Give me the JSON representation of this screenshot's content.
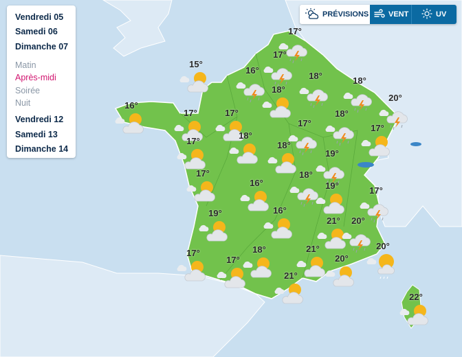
{
  "days_panel": {
    "days_before": [
      "Vendredi 05",
      "Samedi 06",
      "Dimanche 07"
    ],
    "periods": [
      {
        "label": "Matin",
        "active": false
      },
      {
        "label": "Après-midi",
        "active": true
      },
      {
        "label": "Soirée",
        "active": false
      },
      {
        "label": "Nuit",
        "active": false
      }
    ],
    "days_after": [
      "Vendredi 12",
      "Samedi 13",
      "Dimanche 14"
    ]
  },
  "tabs": [
    {
      "label": "PRÉVISIONS",
      "icon": "sun-cloud-icon",
      "active": false
    },
    {
      "label": "VENT",
      "icon": "wind-icon",
      "active": true
    },
    {
      "label": "UV",
      "icon": "uv-sun-icon",
      "active": false
    }
  ],
  "colors": {
    "land": "#72c24c",
    "sea": "#c9dff0",
    "neighbor_land": "#ddeaf5",
    "active_period": "#d1146f",
    "tab_active": "#0b6aa2"
  },
  "stations": [
    {
      "temp": "17°",
      "icon": "storm-cloud-icon"
    },
    {
      "temp": "17°",
      "icon": "storm-cloud-icon"
    },
    {
      "temp": "15°",
      "icon": "cloud-sun-icon"
    },
    {
      "temp": "16°",
      "icon": "storm-cloud-icon"
    },
    {
      "temp": "18°",
      "icon": "storm-cloud-icon"
    },
    {
      "temp": "18°",
      "icon": "storm-cloud-icon"
    },
    {
      "temp": "18°",
      "icon": "cloud-sun-icon"
    },
    {
      "temp": "20°",
      "icon": "storm-cloud-icon"
    },
    {
      "temp": "16°",
      "icon": "cloud-sun-icon"
    },
    {
      "temp": "17°",
      "icon": "cloud-sun-icon"
    },
    {
      "temp": "17°",
      "icon": "cloud-sun-icon"
    },
    {
      "temp": "18°",
      "icon": "storm-cloud-icon"
    },
    {
      "temp": "17°",
      "icon": "storm-cloud-icon"
    },
    {
      "temp": "17°",
      "icon": "cloud-sun-icon"
    },
    {
      "temp": "17°",
      "icon": "cloud-sun-icon"
    },
    {
      "temp": "18°",
      "icon": "cloud-sun-icon"
    },
    {
      "temp": "18°",
      "icon": "cloud-sun-icon"
    },
    {
      "temp": "19°",
      "icon": "storm-cloud-icon"
    },
    {
      "temp": "17°",
      "icon": "cloud-sun-icon"
    },
    {
      "temp": "16°",
      "icon": "cloud-sun-icon"
    },
    {
      "temp": "18°",
      "icon": "storm-cloud-icon"
    },
    {
      "temp": "19°",
      "icon": "cloud-sun-icon"
    },
    {
      "temp": "17°",
      "icon": "storm-cloud-icon"
    },
    {
      "temp": "19°",
      "icon": "cloud-sun-icon"
    },
    {
      "temp": "16°",
      "icon": "cloud-sun-icon"
    },
    {
      "temp": "21°",
      "icon": "cloud-sun-icon"
    },
    {
      "temp": "20°",
      "icon": "storm-cloud-icon"
    },
    {
      "temp": "17°",
      "icon": "cloud-sun-icon"
    },
    {
      "temp": "18°",
      "icon": "cloud-sun-icon"
    },
    {
      "temp": "21°",
      "icon": "cloud-sun-icon"
    },
    {
      "temp": "20°",
      "icon": "sun-cloud-icon"
    },
    {
      "temp": "17°",
      "icon": "cloud-sun-icon"
    },
    {
      "temp": "20°",
      "icon": "cloud-sun-icon"
    },
    {
      "temp": "21°",
      "icon": "cloud-sun-icon"
    },
    {
      "temp": "22°",
      "icon": "cloud-sun-icon"
    }
  ]
}
